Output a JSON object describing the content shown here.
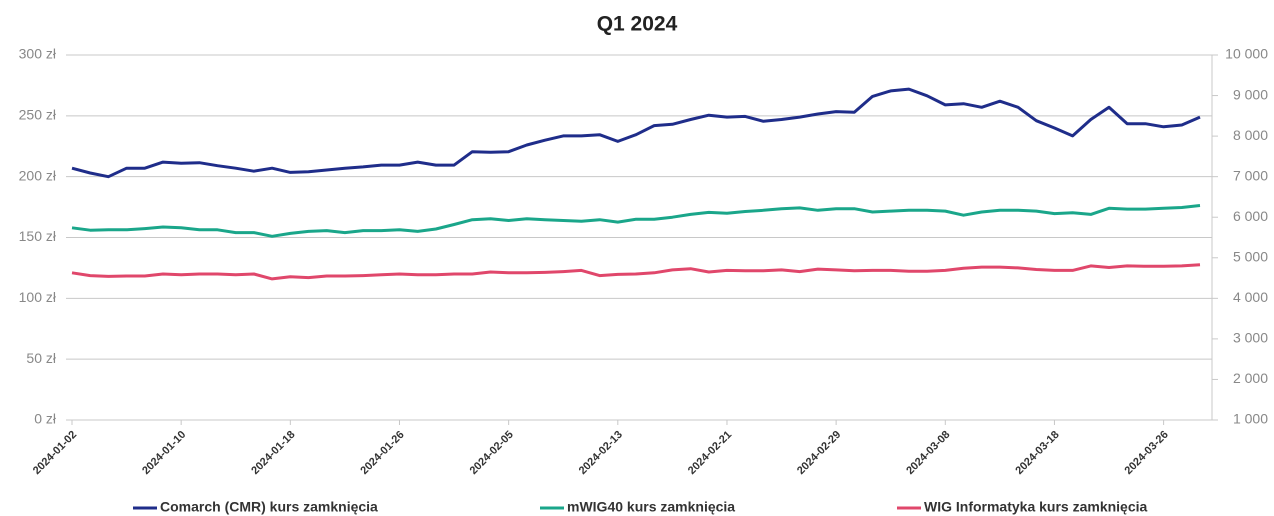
{
  "chart_data": {
    "type": "line",
    "title": "Q1 2024",
    "categories": [
      "2024-01-02",
      null,
      null,
      null,
      null,
      null,
      "2024-01-10",
      null,
      null,
      null,
      null,
      null,
      "2024-01-18",
      null,
      null,
      null,
      null,
      null,
      "2024-01-26",
      null,
      null,
      null,
      null,
      null,
      "2024-02-05",
      null,
      null,
      null,
      null,
      null,
      "2024-02-13",
      null,
      null,
      null,
      null,
      null,
      "2024-02-21",
      null,
      null,
      null,
      null,
      null,
      "2024-02-29",
      null,
      null,
      null,
      null,
      null,
      "2024-03-08",
      null,
      null,
      null,
      null,
      null,
      "2024-03-18",
      null,
      null,
      null,
      null,
      null,
      "2024-03-26",
      null,
      null
    ],
    "series": [
      {
        "name": "Comarch (CMR) kurs zamknięcia",
        "color": "#1f2d8a",
        "values": [
          207,
          203,
          200,
          207,
          207,
          212,
          211,
          211.5,
          209,
          207,
          204.5,
          207,
          203.5,
          204,
          205.5,
          207,
          208,
          209.5,
          209.5,
          212,
          209.5,
          209.5,
          220.5,
          220,
          220.5,
          226,
          230,
          233.5,
          233.5,
          234.5,
          229,
          234.5,
          242,
          243,
          247,
          250.5,
          249,
          249.5,
          245.5,
          247,
          249,
          251.5,
          253.5,
          253,
          266,
          270.5,
          272,
          266.5,
          259,
          260,
          257,
          262,
          257,
          246,
          240,
          233.5,
          247,
          257,
          243.5,
          243.5,
          241,
          242.5,
          249
        ]
      },
      {
        "name": "mWIG40 kurs zamknięcia",
        "color": "#1aa68a",
        "axis": "y2",
        "values": [
          5740,
          5680,
          5690,
          5690,
          5720,
          5760,
          5740,
          5690,
          5690,
          5620,
          5620,
          5530,
          5600,
          5650,
          5670,
          5620,
          5670,
          5670,
          5690,
          5650,
          5710,
          5820,
          5940,
          5960,
          5920,
          5960,
          5940,
          5920,
          5900,
          5940,
          5880,
          5950,
          5950,
          6000,
          6070,
          6120,
          6100,
          6140,
          6170,
          6210,
          6230,
          6170,
          6210,
          6210,
          6130,
          6150,
          6170,
          6170,
          6150,
          6050,
          6130,
          6170,
          6170,
          6150,
          6090,
          6110,
          6070,
          6220,
          6200,
          6200,
          6220,
          6240,
          6290
        ]
      },
      {
        "name": "WIG Informatyka kurs zamknięcia",
        "color": "#e0476b",
        "axis": "y2",
        "values": [
          4630,
          4560,
          4540,
          4550,
          4550,
          4600,
          4580,
          4600,
          4600,
          4580,
          4600,
          4480,
          4530,
          4510,
          4550,
          4550,
          4560,
          4580,
          4600,
          4580,
          4580,
          4600,
          4600,
          4650,
          4630,
          4630,
          4640,
          4660,
          4690,
          4560,
          4590,
          4600,
          4630,
          4700,
          4730,
          4650,
          4690,
          4680,
          4680,
          4700,
          4660,
          4720,
          4700,
          4680,
          4690,
          4690,
          4670,
          4670,
          4690,
          4740,
          4770,
          4770,
          4750,
          4710,
          4690,
          4690,
          4800,
          4760,
          4800,
          4790,
          4790,
          4800,
          4830
        ]
      }
    ],
    "ylim": [
      0,
      300
    ],
    "yticks": [
      {
        "value": 0,
        "label": "0 zł"
      },
      {
        "value": 50,
        "label": "50 zł"
      },
      {
        "value": 100,
        "label": "100 zł"
      },
      {
        "value": 150,
        "label": "150 zł"
      },
      {
        "value": 200,
        "label": "200 zł"
      },
      {
        "value": 250,
        "label": "250 zł"
      },
      {
        "value": 300,
        "label": "300 zł"
      }
    ],
    "y2lim": [
      1000,
      10000
    ],
    "y2ticks": [
      {
        "value": 1000,
        "label": "1 000"
      },
      {
        "value": 2000,
        "label": "2 000"
      },
      {
        "value": 3000,
        "label": "3 000"
      },
      {
        "value": 4000,
        "label": "4 000"
      },
      {
        "value": 5000,
        "label": "5 000"
      },
      {
        "value": 6000,
        "label": "6 000"
      },
      {
        "value": 7000,
        "label": "7 000"
      },
      {
        "value": 8000,
        "label": "8 000"
      },
      {
        "value": 9000,
        "label": "9 000"
      },
      {
        "value": 10000,
        "label": "10 000"
      }
    ],
    "grid": true,
    "legend": "bottom"
  }
}
